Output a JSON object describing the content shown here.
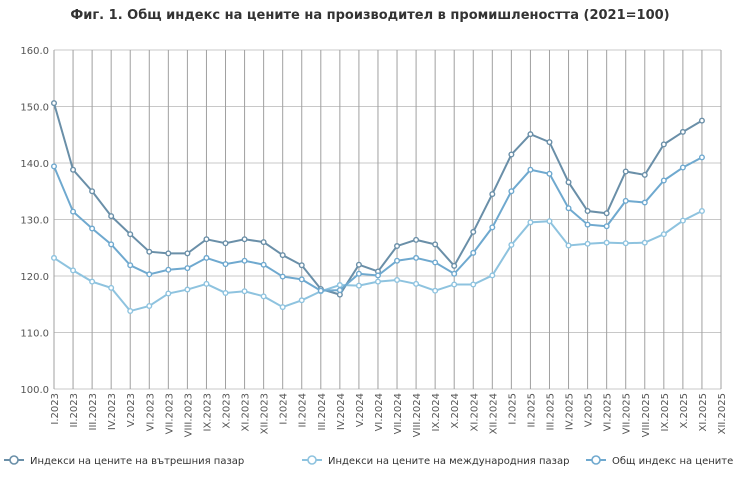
{
  "chart_data": {
    "type": "line",
    "title": "Фиг. 1. Общ индекс на цените на производител в промишлеността (2021=100)",
    "xlabel": "",
    "ylabel": "",
    "ylim": [
      100,
      160
    ],
    "y_ticks": [
      "100.0",
      "110.0",
      "120.0",
      "130.0",
      "140.0",
      "150.0",
      "160.0"
    ],
    "grid": true,
    "legend_position": "bottom",
    "categories": [
      "I.2023",
      "II.2023",
      "III.2023",
      "IV.2023",
      "V.2023",
      "VI.2023",
      "VII.2023",
      "VIII.2023",
      "IX.2023",
      "X.2023",
      "XI.2023",
      "XII.2023",
      "I.2024",
      "II.2024",
      "III.2024",
      "IV.2024",
      "V.2024",
      "VI.2024",
      "VII.2024",
      "VIII.2024",
      "IX.2024",
      "X.2024",
      "XI.2024",
      "XII.2024",
      "I.2025",
      "II.2025",
      "III.2025",
      "IV.2025",
      "V.2025",
      "VI.2025",
      "VII.2025",
      "VIII.2025",
      "IX.2025",
      "X.2025",
      "XI.2025",
      "XII.2025"
    ],
    "series": [
      {
        "name": "Индекси на цените на вътрешния пазар",
        "color": "#6a8fa8",
        "values": [
          150.6,
          138.8,
          135.0,
          130.6,
          127.4,
          124.3,
          124.0,
          124.0,
          126.5,
          125.8,
          126.5,
          126.0,
          123.7,
          121.9,
          117.7,
          116.7,
          122.0,
          120.8,
          125.3,
          126.4,
          125.6,
          121.8,
          127.8,
          134.5,
          141.5,
          145.1,
          143.7,
          136.6,
          131.5,
          131.1,
          138.5,
          137.9,
          143.3,
          145.5,
          147.5,
          null
        ]
      },
      {
        "name": "Индекси на цените на международния пазар",
        "color": "#8ec3df",
        "values": [
          123.2,
          121.0,
          119.0,
          117.9,
          113.8,
          114.7,
          116.9,
          117.6,
          118.6,
          117.0,
          117.3,
          116.4,
          114.5,
          115.7,
          117.3,
          118.4,
          118.3,
          119.0,
          119.3,
          118.6,
          117.4,
          118.5,
          118.5,
          120.1,
          125.5,
          129.5,
          129.7,
          125.4,
          125.7,
          125.9,
          125.8,
          125.9,
          127.4,
          129.8,
          131.5,
          null
        ]
      },
      {
        "name": "Общ индекс на цените",
        "color": "#6fa9cf",
        "values": [
          139.4,
          131.4,
          128.4,
          125.6,
          121.9,
          120.3,
          121.1,
          121.4,
          123.2,
          122.1,
          122.7,
          122.0,
          119.9,
          119.4,
          117.4,
          117.5,
          120.4,
          120.1,
          122.7,
          123.2,
          122.4,
          120.4,
          124.1,
          128.6,
          135.0,
          138.8,
          138.1,
          132.0,
          129.1,
          128.8,
          133.3,
          133.0,
          136.9,
          139.2,
          141.0,
          null
        ]
      }
    ]
  }
}
